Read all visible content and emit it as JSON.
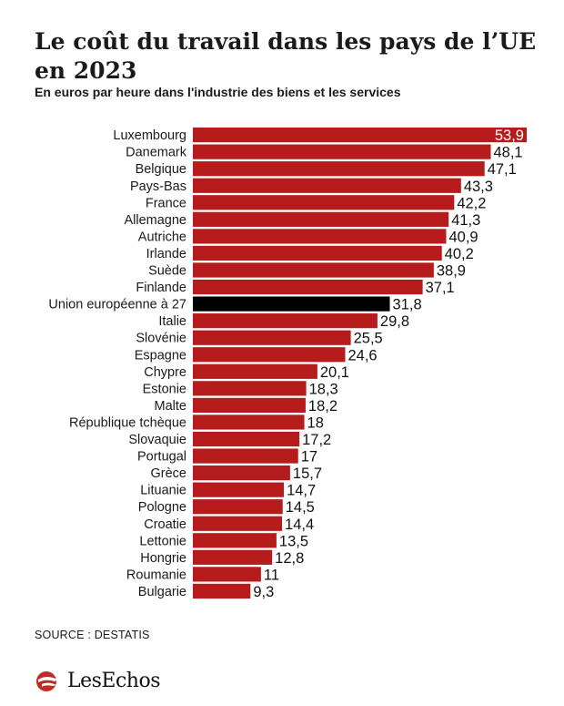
{
  "header": {
    "title": "Le coût du travail dans les pays de l’UE en 2023",
    "subtitle": "En euros par heure dans l'industrie des biens et les services"
  },
  "footer": {
    "source": "SOURCE : DESTATIS",
    "brand": "LesEchos"
  },
  "colors": {
    "bar": "#b71c1c",
    "highlight_bar": "#000000",
    "inside_label": "#ffffff"
  },
  "chart_data": {
    "type": "bar",
    "orientation": "horizontal",
    "highlight": "Union européenne à 27",
    "categories": [
      "Luxembourg",
      "Danemark",
      "Belgique",
      "Pays-Bas",
      "France",
      "Allemagne",
      "Autriche",
      "Irlande",
      "Suède",
      "Finlande",
      "Union européenne à 27",
      "Italie",
      "Slovénie",
      "Espagne",
      "Chypre",
      "Estonie",
      "Malte",
      "République tchèque",
      "Slovaquie",
      "Portugal",
      "Grèce",
      "Lituanie",
      "Pologne",
      "Croatie",
      "Lettonie",
      "Hongrie",
      "Roumanie",
      "Bulgarie"
    ],
    "values": [
      53.9,
      48.1,
      47.1,
      43.3,
      42.2,
      41.3,
      40.9,
      40.2,
      38.9,
      37.1,
      31.8,
      29.8,
      25.5,
      24.6,
      20.1,
      18.3,
      18.2,
      18,
      17.2,
      17,
      15.7,
      14.7,
      14.5,
      14.4,
      13.5,
      12.8,
      11,
      9.3
    ],
    "value_labels": [
      "53,9",
      "48,1",
      "47,1",
      "43,3",
      "42,2",
      "41,3",
      "40,9",
      "40,2",
      "38,9",
      "37,1",
      "31,8",
      "29,8",
      "25,5",
      "24,6",
      "20,1",
      "18,3",
      "18,2",
      "18",
      "17,2",
      "17",
      "15,7",
      "14,7",
      "14,5",
      "14,4",
      "13,5",
      "12,8",
      "11",
      "9,3"
    ],
    "xlim": [
      0,
      53.9
    ],
    "grid": false,
    "legend": "none"
  }
}
